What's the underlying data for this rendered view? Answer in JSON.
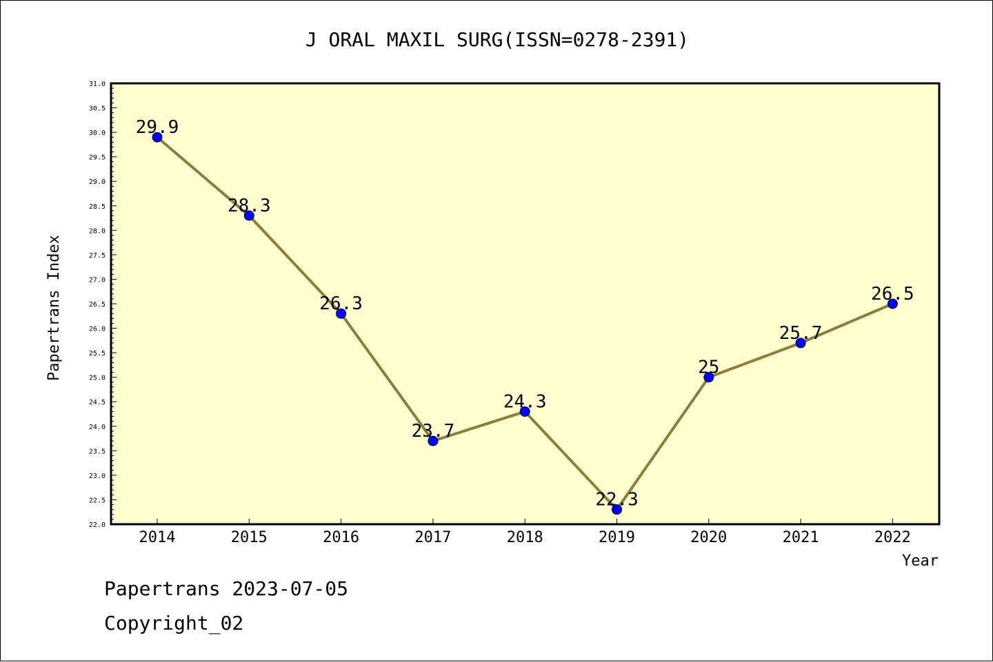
{
  "chart_data": {
    "type": "line",
    "title": "J ORAL MAXIL SURG(ISSN=0278-2391)",
    "xlabel": "Year",
    "ylabel": "Papertrans Index",
    "categories": [
      "2014",
      "2015",
      "2016",
      "2017",
      "2018",
      "2019",
      "2020",
      "2021",
      "2022"
    ],
    "values": [
      29.9,
      28.3,
      26.3,
      23.7,
      24.3,
      22.3,
      25,
      25.7,
      26.5
    ],
    "value_labels": [
      "29.9",
      "28.3",
      "26.3",
      "23.7",
      "24.3",
      "22.3",
      "25",
      "25.7",
      "26.5"
    ],
    "ylim": [
      22.0,
      31.0
    ],
    "yticks": [
      "22.0",
      "22.5",
      "23.0",
      "23.5",
      "24.0",
      "24.5",
      "25.0",
      "25.5",
      "26.0",
      "26.5",
      "27.0",
      "27.5",
      "28.0",
      "28.5",
      "29.0",
      "29.5",
      "30.0",
      "30.5",
      "31.0"
    ],
    "grid": false,
    "colors": {
      "plot_background": "#ffffd0",
      "line": "#8b7d3a",
      "marker": "#0000ff"
    }
  },
  "footer": {
    "line1": "Papertrans 2023-07-05",
    "line2": "Copyright_02"
  }
}
